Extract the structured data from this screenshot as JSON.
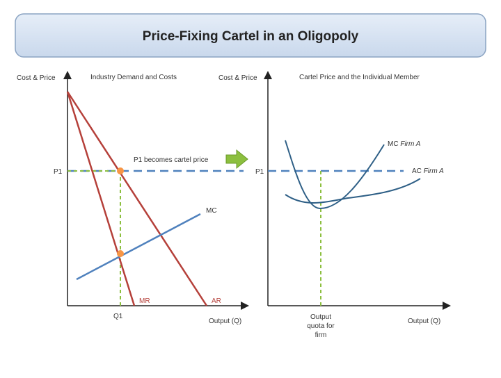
{
  "title": "Price-Fixing Cartel in an Oligopoly",
  "left_panel": {
    "heading": "Industry Demand and Costs",
    "y_axis_label": "Cost & Price",
    "x_axis_label": "Output (Q)",
    "price_label": "P1",
    "quantity_label": "Q1",
    "arrow_label": "P1 becomes cartel price",
    "mc_label": "MC",
    "mr_label": "MR",
    "ar_label": "AR"
  },
  "right_panel": {
    "heading": "Cartel Price and the Individual Member",
    "y_axis_label": "Cost & Price",
    "x_axis_label": "Output (Q)",
    "price_label": "P1",
    "mc_label": {
      "text": "MC",
      "qualifier": "Firm A"
    },
    "ac_label": {
      "text": "AC",
      "qualifier": "Firm A"
    },
    "quota_label": [
      "Output",
      "quota for",
      "firm"
    ]
  }
}
